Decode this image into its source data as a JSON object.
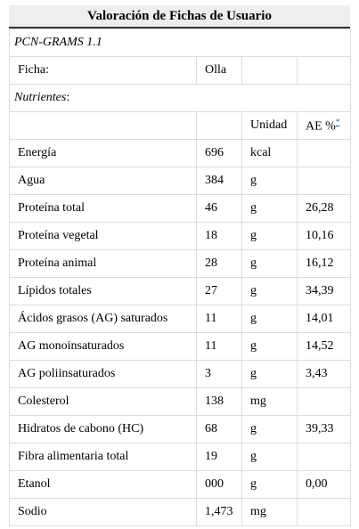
{
  "title": "Valoración de Fichas de Usuario",
  "software": "PCN-GRAMS 1.1",
  "ficha": {
    "label": "Ficha:",
    "value": "Olla"
  },
  "section_label": "Nutrientes",
  "section_colon": ":",
  "headers": {
    "unidad": "Unidad",
    "ae": "AE %",
    "ae_note": "*"
  },
  "rows": [
    {
      "name": "Energía",
      "value": "696",
      "unit": "kcal",
      "ae": ""
    },
    {
      "name": "Agua",
      "value": "384",
      "unit": "g",
      "ae": ""
    },
    {
      "name": "Proteína total",
      "value": "46",
      "unit": "g",
      "ae": "26,28"
    },
    {
      "name": "Proteína vegetal",
      "value": "18",
      "unit": "g",
      "ae": "10,16"
    },
    {
      "name": "Proteína animal",
      "value": "28",
      "unit": "g",
      "ae": "16,12"
    },
    {
      "name": "Lípidos totales",
      "value": "27",
      "unit": "g",
      "ae": "34,39"
    },
    {
      "name": "Ácidos grasos (AG) saturados",
      "value": "11",
      "unit": "g",
      "ae": "14,01"
    },
    {
      "name": "AG monoinsaturados",
      "value": "11",
      "unit": "g",
      "ae": "14,52"
    },
    {
      "name": "AG poliinsaturados",
      "value": "3",
      "unit": "g",
      "ae": "3,43"
    },
    {
      "name": "Colesterol",
      "value": "138",
      "unit": "mg",
      "ae": ""
    },
    {
      "name": "Hidratos de cabono (HC)",
      "value": "68",
      "unit": "g",
      "ae": "39,33"
    },
    {
      "name": "Fibra alimentaria total",
      "value": "19",
      "unit": "g",
      "ae": ""
    },
    {
      "name": "Etanol",
      "value": "000",
      "unit": "g",
      "ae": "0,00"
    },
    {
      "name": "Sodio",
      "value": "1,473",
      "unit": "mg",
      "ae": ""
    }
  ]
}
